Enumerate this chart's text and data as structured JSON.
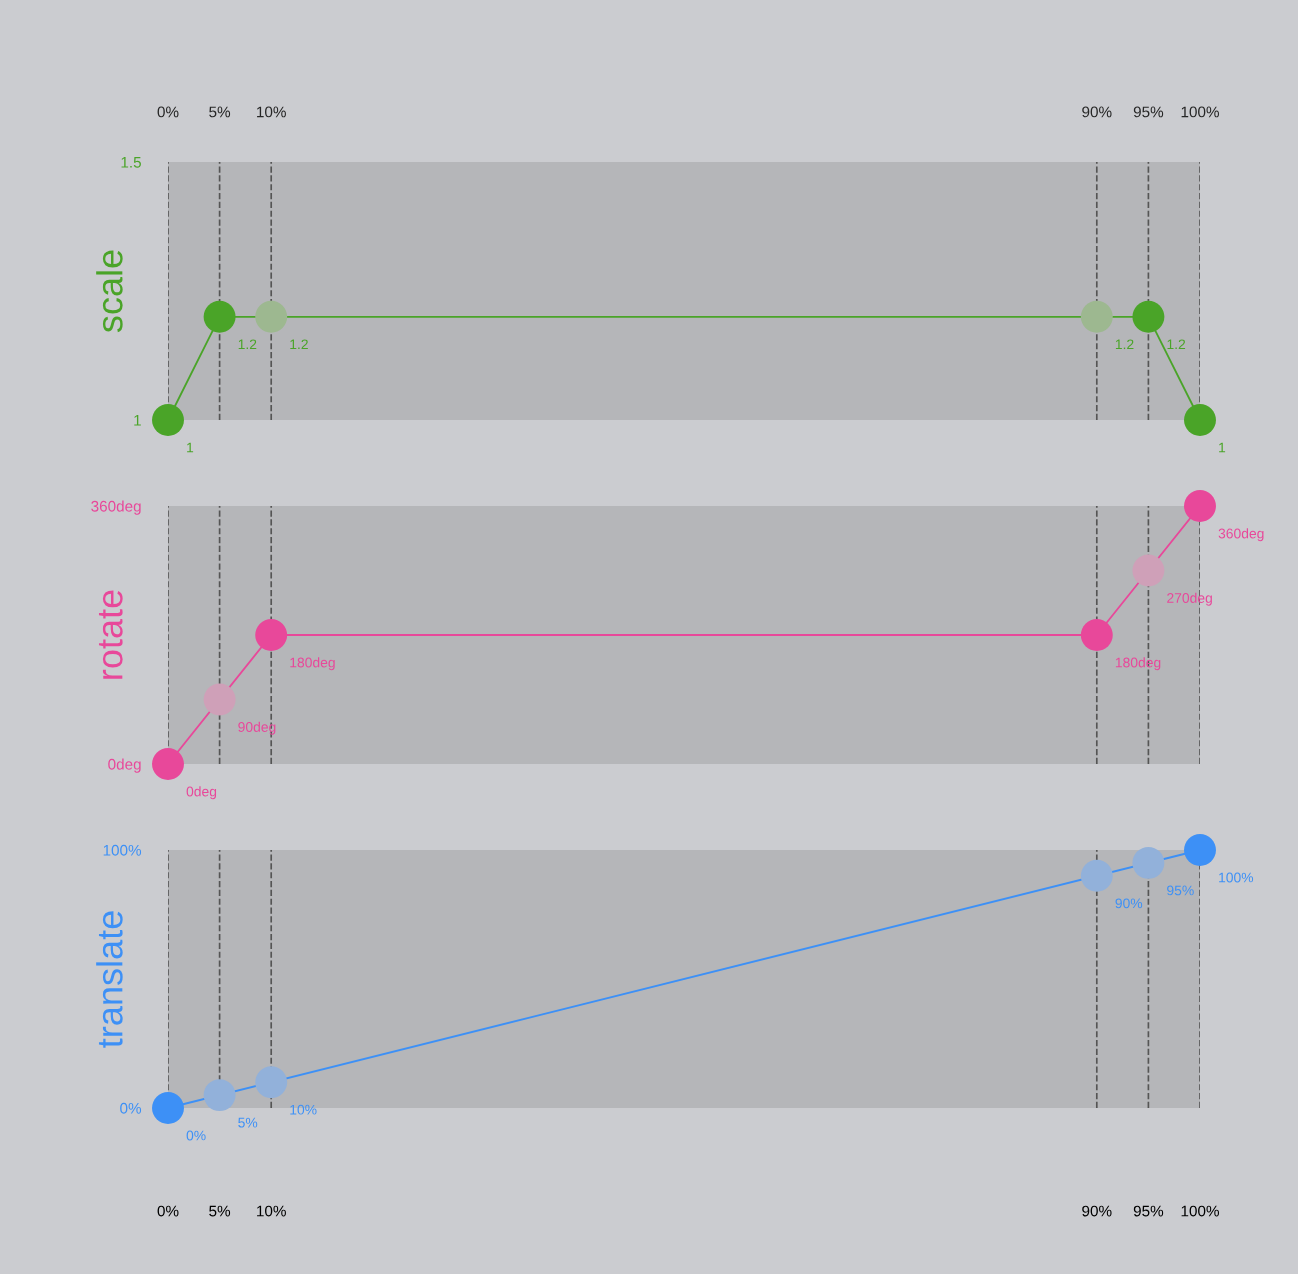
{
  "chart_data": [
    {
      "type": "line",
      "ylabel": "scale",
      "xlim": [
        0,
        100
      ],
      "xticks": [
        {
          "value": 0,
          "label": null
        },
        {
          "value": 5,
          "label": null
        },
        {
          "value": 10,
          "label": null
        },
        {
          "value": 90,
          "label": null
        },
        {
          "value": 95,
          "label": null
        },
        {
          "value": 100,
          "label": null
        }
      ],
      "x2lim": [
        0,
        100
      ],
      "x2ticks": [
        {
          "value": 0,
          "label": "0%"
        },
        {
          "value": 5,
          "label": "5%"
        },
        {
          "value": 10,
          "label": "10%"
        },
        {
          "value": 90,
          "label": "90%"
        },
        {
          "value": 95,
          "label": "95%"
        },
        {
          "value": 100,
          "label": "100%"
        }
      ],
      "ylim": [
        1,
        1.5
      ],
      "yticks": [
        1,
        1.5
      ],
      "tick_labels": "y",
      "grid": "x",
      "legend": false,
      "data_labels": true,
      "series": [
        {
          "marker": "circle",
          "color": "#4aa428",
          "x": [
            0,
            5,
            95,
            100
          ],
          "values": [
            1,
            1.2,
            1.2,
            1
          ],
          "value_labels": [
            "1",
            "1.2",
            "1.2",
            "1"
          ]
        },
        {
          "type": "scatter",
          "marker": "circle",
          "color": "#9db890",
          "x": [
            10,
            90
          ],
          "values": [
            1.2,
            1.2
          ],
          "value_labels": [
            "1.2",
            "1.2"
          ]
        }
      ]
    },
    {
      "type": "line",
      "ylabel": "rotate",
      "xlim": [
        0,
        100
      ],
      "xticks": [
        {
          "value": 0,
          "label": null
        },
        {
          "value": 5,
          "label": null
        },
        {
          "value": 10,
          "label": null
        },
        {
          "value": 90,
          "label": null
        },
        {
          "value": 95,
          "label": null
        },
        {
          "value": 100,
          "label": null
        }
      ],
      "ylim": [
        0,
        360
      ],
      "yticks": [
        {
          "value": 0,
          "label": "0deg"
        },
        {
          "value": 360,
          "label": "360deg"
        }
      ],
      "tick_labels": "y",
      "grid": "x",
      "legend": false,
      "data_labels": true,
      "series": [
        {
          "marker": "circle",
          "color": "#e8489a",
          "x": [
            0,
            10,
            90,
            100
          ],
          "values": [
            0,
            180,
            180,
            360
          ],
          "value_labels": [
            "0deg",
            "180deg",
            "180deg",
            "360deg"
          ]
        },
        {
          "type": "scatter",
          "marker": "circle",
          "color": "#cfa0b8",
          "x": [
            5,
            95
          ],
          "values": [
            90,
            270
          ],
          "value_labels": [
            "90deg",
            "270deg"
          ]
        }
      ]
    },
    {
      "type": "line",
      "ylabel": "translate",
      "xlim": [
        0,
        100
      ],
      "xticks": [
        {
          "value": 0,
          "label": "0%"
        },
        {
          "value": 5,
          "label": "5%"
        },
        {
          "value": 10,
          "label": "10%"
        },
        {
          "value": 90,
          "label": "90%"
        },
        {
          "value": 95,
          "label": "95%"
        },
        {
          "value": 100,
          "label": "100%"
        }
      ],
      "ylim": [
        0,
        100
      ],
      "yticks": [
        {
          "value": 0,
          "label": "0%"
        },
        {
          "value": 100,
          "label": "100%"
        }
      ],
      "grid": "x",
      "legend": false,
      "data_labels": true,
      "series": [
        {
          "marker": "circle",
          "color": "#3d90f6",
          "x": [
            0,
            100
          ],
          "values": [
            0,
            100
          ],
          "value_labels": [
            "0%",
            "100%"
          ]
        },
        {
          "type": "scatter",
          "marker": "circle",
          "color": "#92b1da",
          "x": [
            5,
            10,
            90,
            95
          ],
          "values": [
            5,
            10,
            90,
            95
          ],
          "value_labels": [
            "5%",
            "10%",
            "90%",
            "95%"
          ]
        }
      ]
    }
  ]
}
